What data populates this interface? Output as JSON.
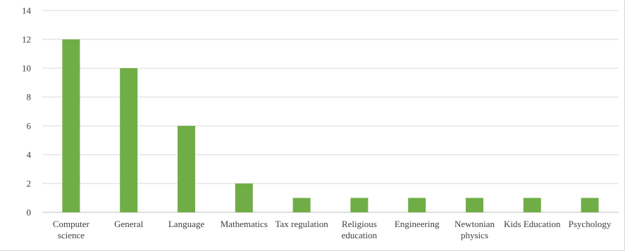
{
  "chart_data": {
    "type": "bar",
    "title": "",
    "xlabel": "",
    "ylabel": "",
    "ylim": [
      0,
      14
    ],
    "yticks": [
      0,
      2,
      4,
      6,
      8,
      10,
      12,
      14
    ],
    "grid": true,
    "legend": "none",
    "bar_color": "#70ad47",
    "categories": [
      "Computer science",
      "General",
      "Language",
      "Mathematics",
      "Tax regulation",
      "Religious education",
      "Engineering",
      "Newtonian physics",
      "Kids Education",
      "Psychology"
    ],
    "category_lines": [
      [
        "Computer",
        "science"
      ],
      [
        "General"
      ],
      [
        "Language"
      ],
      [
        "Mathematics"
      ],
      [
        "Tax regulation"
      ],
      [
        "Religious",
        "education"
      ],
      [
        "Engineering"
      ],
      [
        "Newtonian",
        "physics"
      ],
      [
        "Kids Education"
      ],
      [
        "Psychology"
      ]
    ],
    "values": [
      12,
      10,
      6,
      2,
      1,
      1,
      1,
      1,
      1,
      1
    ]
  }
}
